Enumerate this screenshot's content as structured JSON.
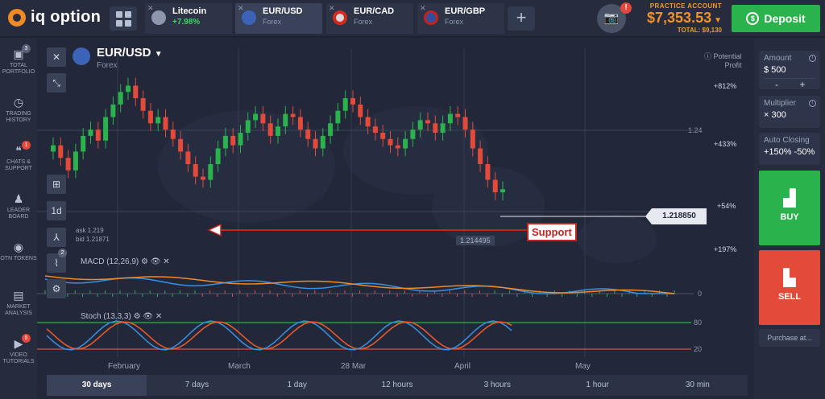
{
  "app": {
    "logo_text": "iq option"
  },
  "tabs": [
    {
      "name": "Litecoin",
      "sub": "+7.98%",
      "color": "#9aa3b9"
    },
    {
      "name": "EUR/USD",
      "sub": "Forex",
      "color": "#3b63b7"
    },
    {
      "name": "EUR/CAD",
      "sub": "Forex",
      "color": "#d9d9d9"
    },
    {
      "name": "EUR/GBP",
      "sub": "Forex",
      "color": "#2f4fa0"
    }
  ],
  "balance": {
    "account": "PRACTICE ACCOUNT",
    "amount": "$7,353.53",
    "total": "TOTAL: $9,130"
  },
  "alert_count": "!",
  "deposit_label": "Deposit",
  "sidebar": [
    {
      "label": "TOTAL PORTFOLIO",
      "badge": "3",
      "icon": "portfolio-icon"
    },
    {
      "label": "TRADING HISTORY",
      "badge": "",
      "icon": "history-icon"
    },
    {
      "label": "CHATS & SUPPORT",
      "badge": "1",
      "icon": "chat-icon"
    },
    {
      "label": "LEADER BOARD",
      "badge": "",
      "icon": "leader-icon"
    },
    {
      "label": "OTN TOKENS",
      "badge": "",
      "icon": "token-icon"
    },
    {
      "label": "MARKET ANALYSIS",
      "badge": "",
      "icon": "analysis-icon"
    },
    {
      "label": "VIDEO TUTORIALS",
      "badge": "5",
      "icon": "video-icon"
    }
  ],
  "chart": {
    "asset_name": "EUR/USD",
    "asset_sub": "Forex",
    "potential_profit_l1": "Potential",
    "potential_profit_l2": "Profit",
    "timeframe": "1d",
    "ask": "ask 1.219",
    "bid": "bid 1.21871",
    "current_price": "1.218850",
    "low_price": "1.214495",
    "support_label": "Support",
    "macd_label": "MACD (12,26,9)",
    "stoch_label": "Stoch (13,3,3)",
    "indicator_badge": "2"
  },
  "chart_data": {
    "type": "candlestick",
    "price_ticks": [
      "1.24"
    ],
    "profit_levels": [
      "+812%",
      "+433%",
      "+54%",
      "+197%"
    ],
    "macd_zero": "0",
    "stoch_levels": [
      "80",
      "20"
    ],
    "x_labels": [
      "February",
      "March",
      "28 Mar",
      "April",
      "May"
    ],
    "candles_relative_close": [
      0.52,
      0.44,
      0.36,
      0.48,
      0.58,
      0.62,
      0.55,
      0.7,
      0.78,
      0.86,
      0.9,
      0.82,
      0.74,
      0.66,
      0.7,
      0.62,
      0.56,
      0.48,
      0.4,
      0.32,
      0.3,
      0.4,
      0.5,
      0.58,
      0.52,
      0.6,
      0.68,
      0.72,
      0.66,
      0.58,
      0.64,
      0.72,
      0.7,
      0.62,
      0.56,
      0.5,
      0.58,
      0.66,
      0.74,
      0.82,
      0.78,
      0.7,
      0.64,
      0.6,
      0.56,
      0.52,
      0.5,
      0.56,
      0.62,
      0.68,
      0.66,
      0.6,
      0.66,
      0.72,
      0.7,
      0.62,
      0.5,
      0.4,
      0.3,
      0.22,
      0.24
    ]
  },
  "timebar": [
    "30 days",
    "7 days",
    "1 day",
    "12 hours",
    "3 hours",
    "1 hour",
    "30 min"
  ],
  "right_panel": {
    "amount_label": "Amount",
    "amount_value": "$  500",
    "amount_minus": "-",
    "amount_plus": "+",
    "multiplier_label": "Multiplier",
    "multiplier_value": "× 300",
    "auto_closing_label": "Auto Closing",
    "auto_closing_value": "+150% -50%",
    "buy_label": "BUY",
    "sell_label": "SELL",
    "purchase_label": "Purchase at..."
  }
}
